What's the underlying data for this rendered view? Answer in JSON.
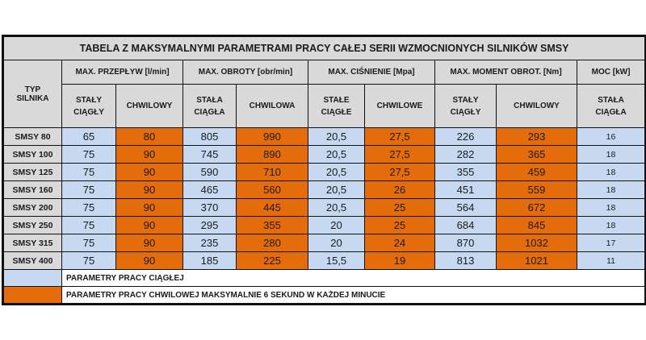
{
  "title": "TABELA Z MAKSYMALNYMI PARAMETRAMI PRACY CAŁEJ SERII WZMOCNIONYCH SILNIKÓW SMSY",
  "type_header": [
    "TYP",
    "SILNIKA"
  ],
  "groups": [
    "MAX. PRZEPŁYW [l/min]",
    "MAX. OBROTY [obr/min]",
    "MAX. CIŚNIENIE [Mpa]",
    "MAX. MOMENT OBROT. [Nm]",
    "MOC [kW]"
  ],
  "subheaders": [
    [
      "STAŁY",
      "CIĄGŁY"
    ],
    [
      "CHWILOWY"
    ],
    [
      "STAŁA",
      "CIĄGŁA"
    ],
    [
      "CHWILOWA"
    ],
    [
      "STAŁE",
      "CIĄGŁE"
    ],
    [
      "CHWILOWE"
    ],
    [
      "STAŁY",
      "CIĄGŁY"
    ],
    [
      "CHWILOWY"
    ],
    [
      "STAŁA",
      "CIĄGŁA"
    ]
  ],
  "rows": [
    {
      "name": "SMSY 80",
      "values": [
        "65",
        "80",
        "805",
        "990",
        "20,5",
        "27,5",
        "226",
        "293",
        "16"
      ]
    },
    {
      "name": "SMSY 100",
      "values": [
        "75",
        "90",
        "745",
        "890",
        "20,5",
        "27,5",
        "282",
        "365",
        "18"
      ]
    },
    {
      "name": "SMSY 125",
      "values": [
        "75",
        "90",
        "590",
        "710",
        "20,5",
        "27,5",
        "355",
        "459",
        "18"
      ]
    },
    {
      "name": "SMSY 160",
      "values": [
        "75",
        "90",
        "465",
        "560",
        "20,5",
        "26",
        "451",
        "559",
        "18"
      ]
    },
    {
      "name": "SMSY 200",
      "values": [
        "75",
        "90",
        "370",
        "445",
        "20,5",
        "25",
        "564",
        "672",
        "18"
      ]
    },
    {
      "name": "SMSY 250",
      "values": [
        "75",
        "90",
        "295",
        "355",
        "20",
        "25",
        "684",
        "845",
        "18"
      ]
    },
    {
      "name": "SMSY 315",
      "values": [
        "75",
        "90",
        "235",
        "280",
        "20",
        "24",
        "870",
        "1032",
        "17"
      ]
    },
    {
      "name": "SMSY 400",
      "values": [
        "75",
        "90",
        "185",
        "225",
        "15,5",
        "19",
        "813",
        "1021",
        "11"
      ]
    }
  ],
  "legend": [
    {
      "label": "PARAMETRY PRACY CIĄGŁEJ",
      "color": "#c6d9f0"
    },
    {
      "label": "PARAMETRY PRACY CHWILOWEJ MAKSYMALNIE 6 SEKUND W KAŻDEJ MINUCIE",
      "color": "#e46c0a"
    }
  ],
  "colors": {
    "continuous": "#c6d9f0",
    "intermittent": "#e46c0a",
    "header": "#d9d9d9"
  }
}
